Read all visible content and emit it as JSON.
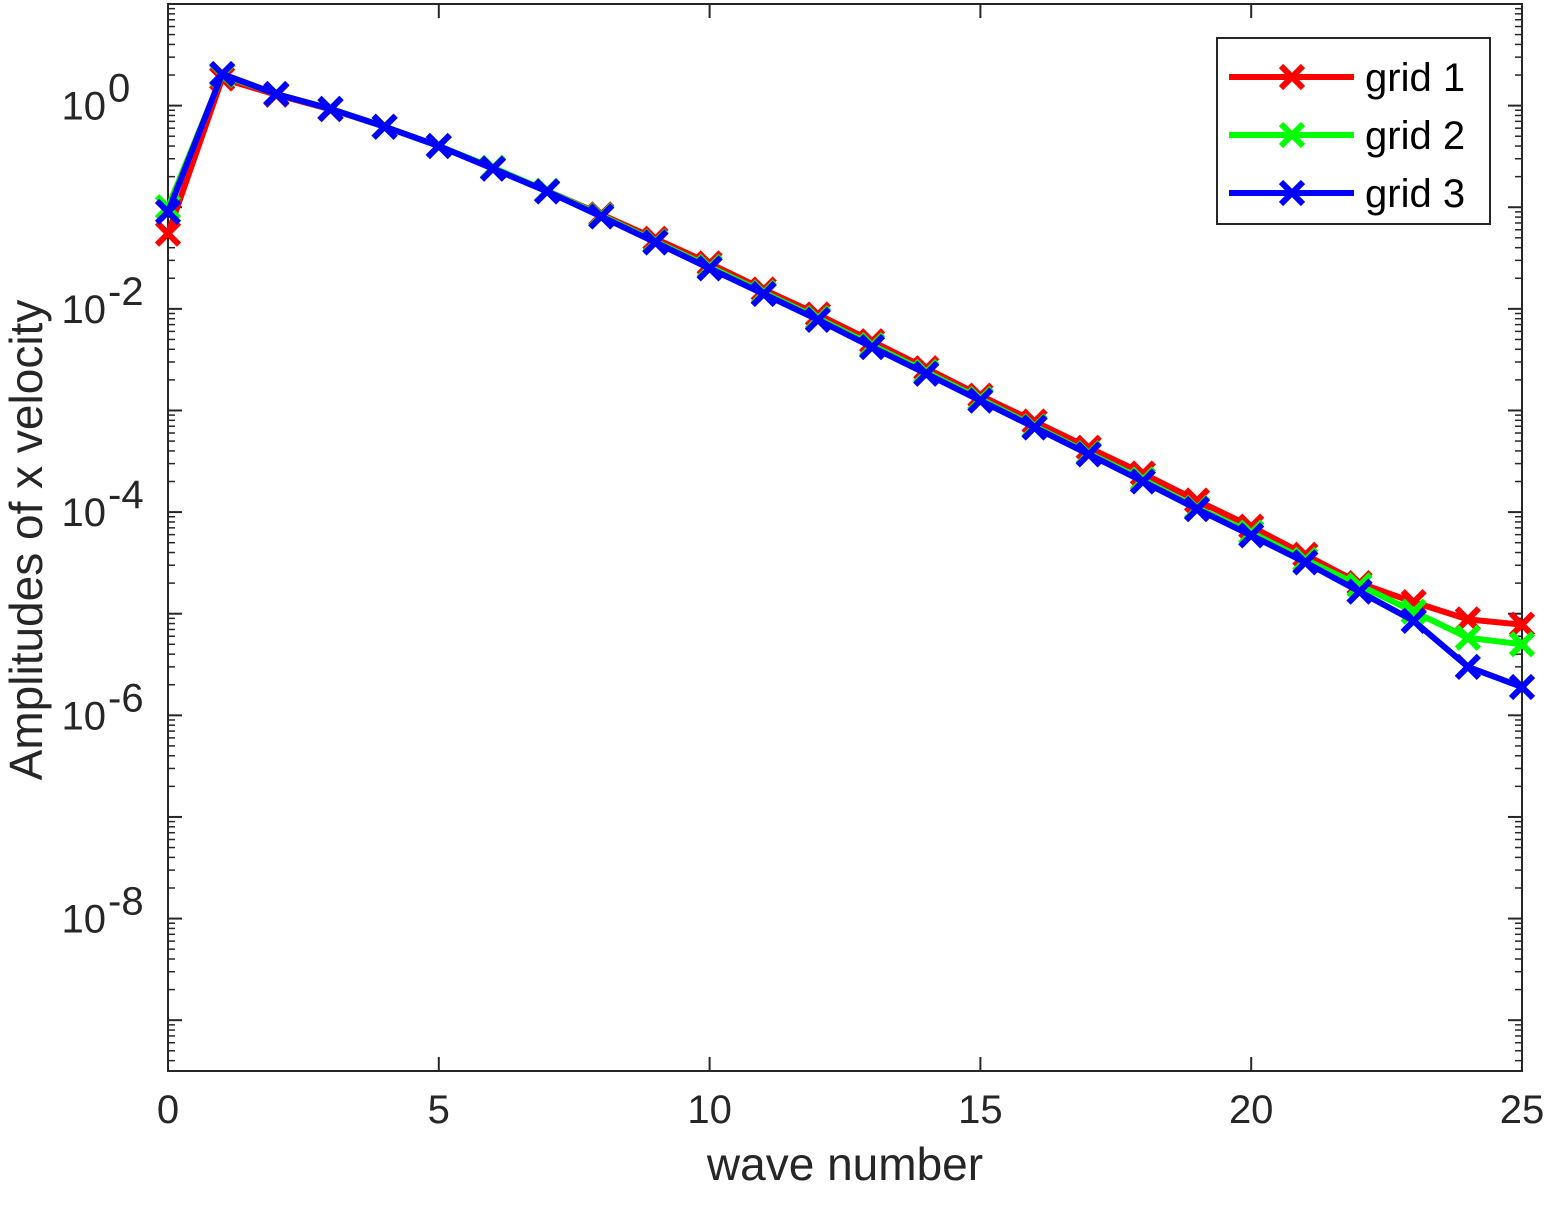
{
  "chart_data": {
    "type": "line",
    "title": "",
    "xlabel": "wave number",
    "ylabel": "Amplitudes of x velocity",
    "xlim": [
      0,
      25
    ],
    "ylim_log10": [
      -9.5,
      1
    ],
    "yscale": "log",
    "grid": false,
    "legend_position": "top-right",
    "x_ticks": [
      0,
      5,
      10,
      15,
      20,
      25
    ],
    "x_tick_labels": [
      "0",
      "5",
      "10",
      "15",
      "20",
      "25"
    ],
    "y_ticks_exponent": [
      0,
      -2,
      -4,
      -6,
      -8
    ],
    "y_tick_base": "10",
    "y_tick_exponent_labels": [
      "0",
      "-2",
      "-4",
      "-6",
      "-8"
    ],
    "x": [
      0,
      1,
      2,
      3,
      4,
      5,
      6,
      7,
      8,
      9,
      10,
      11,
      12,
      13,
      14,
      15,
      16,
      17,
      18,
      19,
      20,
      21,
      22,
      23,
      24,
      25
    ],
    "series": [
      {
        "name": "grid 1",
        "color": "#ff0000",
        "values": [
          0.055,
          1.85,
          1.28,
          0.92,
          0.62,
          0.4,
          0.24,
          0.145,
          0.085,
          0.049,
          0.028,
          0.0155,
          0.0088,
          0.0048,
          0.0026,
          0.0014,
          0.00078,
          0.00043,
          0.00024,
          0.00013,
          7.2e-05,
          3.8e-05,
          2e-05,
          1.3e-05,
          8.8e-06,
          7.8e-06
        ]
      },
      {
        "name": "grid 2",
        "color": "#00ff00",
        "values": [
          0.1,
          2.0,
          1.3,
          0.93,
          0.62,
          0.4,
          0.245,
          0.145,
          0.083,
          0.046,
          0.026,
          0.0145,
          0.0081,
          0.0044,
          0.0024,
          0.0013,
          0.0007,
          0.00038,
          0.00021,
          0.00011,
          6.3e-05,
          3.4e-05,
          1.9e-05,
          1.05e-05,
          5.8e-06,
          5e-06
        ]
      },
      {
        "name": "grid 3",
        "color": "#0000ff",
        "values": [
          0.09,
          2.05,
          1.3,
          0.93,
          0.62,
          0.4,
          0.24,
          0.143,
          0.081,
          0.045,
          0.025,
          0.014,
          0.0078,
          0.0042,
          0.0023,
          0.00125,
          0.00068,
          0.00037,
          0.0002,
          0.000107,
          5.9e-05,
          3.2e-05,
          1.65e-05,
          8.5e-06,
          3e-06,
          1.9e-06
        ]
      }
    ]
  }
}
